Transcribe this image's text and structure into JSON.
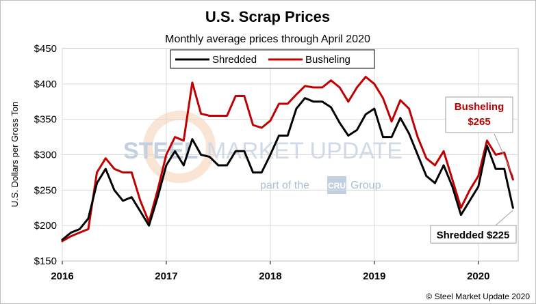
{
  "chart_data": {
    "type": "line",
    "title": "U.S. Scrap Prices",
    "subtitle": "Monthly average prices through April 2020",
    "xlabel": "",
    "ylabel": "U.S. Dollars per Gross Ton",
    "ylim": [
      150,
      450
    ],
    "yticks": [
      150,
      200,
      250,
      300,
      350,
      400,
      450
    ],
    "ytick_labels": [
      "$150",
      "$200",
      "$250",
      "$300",
      "$350",
      "$400",
      "$450"
    ],
    "xticks": [
      "2016",
      "2017",
      "2018",
      "2019",
      "2020"
    ],
    "x_start": "2016-01",
    "x_end": "2020-04",
    "grid": true,
    "legend_position": "top-center",
    "series": [
      {
        "name": "Shredded",
        "color": "#000000",
        "values": [
          180,
          190,
          195,
          210,
          260,
          280,
          250,
          235,
          240,
          220,
          200,
          240,
          285,
          305,
          285,
          322,
          300,
          297,
          285,
          285,
          305,
          305,
          275,
          275,
          300,
          327,
          327,
          365,
          380,
          375,
          375,
          367,
          345,
          327,
          335,
          357,
          365,
          325,
          325,
          352,
          330,
          300,
          270,
          260,
          285,
          255,
          215,
          235,
          255,
          313,
          280,
          280,
          225
        ]
      },
      {
        "name": "Busheling",
        "color": "#c00000",
        "values": [
          178,
          185,
          190,
          195,
          275,
          295,
          280,
          275,
          275,
          235,
          205,
          250,
          300,
          325,
          320,
          402,
          358,
          355,
          355,
          355,
          383,
          383,
          342,
          338,
          348,
          372,
          372,
          385,
          397,
          395,
          395,
          405,
          395,
          375,
          395,
          410,
          400,
          380,
          347,
          377,
          365,
          325,
          295,
          285,
          305,
          265,
          225,
          250,
          270,
          320,
          300,
          303,
          265
        ]
      }
    ],
    "annotations": {
      "busheling_line1": "Busheling",
      "busheling_line2": "$265",
      "shredded": "Shredded $225"
    }
  },
  "watermark": {
    "brand": "STEEL MARKET UPDATE",
    "brand_part1": "STEEL",
    "brand_part2": "MARKET UPDATE",
    "tagline_prefix": "part of the",
    "tagline_logo": "CRU",
    "tagline_suffix": "Group"
  },
  "copyright": "© Steel Market Update 2020",
  "colors": {
    "shredded": "#000000",
    "busheling": "#c00000",
    "gridline": "#d9d9d9",
    "plot_background": "#ffffff"
  }
}
